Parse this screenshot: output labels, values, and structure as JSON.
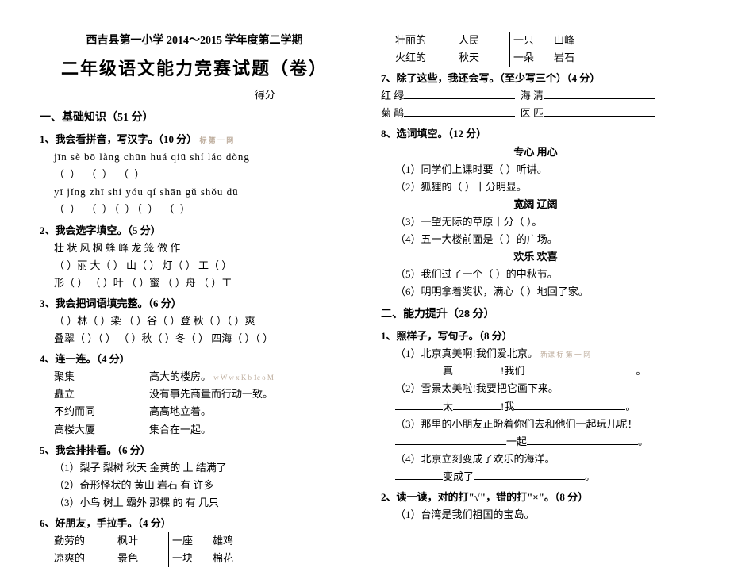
{
  "header": "西吉县第一小学 2014～2015 学年度第二学期",
  "title": "二年级语文能力竞赛试题（卷）",
  "score_label": "得分",
  "sec1": {
    "h": "一、基础知识（51 分）",
    "q1": {
      "h": "1、我会看拼音，写汉字。（10 分）",
      "wm": "标 第 一 网",
      "p1": "jīn sè  bō làng    chūn huá qiū shí        láo dòng",
      "b1": "（     ）   （          ）   （     ）",
      "p2": " yī jǐng    zhī shí    yóu qí   shān gǔ      shǒu dū",
      "b2": "（     ） （     ）（     ）（     ）   （     ）"
    },
    "q2": {
      "h": "2、我会选字填空。（5 分）",
      "l1": "壮 状    风 枫    蜂 峰    龙 笼      做 作",
      "l2": "（  ）丽  大（  ）  山（  ）  灯（  ）  工（  ）",
      "l3": "形（  ）  （  ）叶  （  ）蜜  （  ）舟  （  ）工"
    },
    "q3": {
      "h": "3、我会把词语填完整。（6 分）",
      "l1": "（  ）林（  ）染   （  ）谷（  ）登   秋（    ）（  ）爽",
      "l2": "叠翠（  ）（  ）   （  ）秋（  ）冬（  ）   四海（  ）（  ）"
    },
    "q4": {
      "h": "4、连一连。（4 分）",
      "a1": "聚集",
      "b1": "高大的楼房。",
      "wm": "w    W w x K  b 1c  o M",
      "a2": "矗立",
      "b2": "没有事先商量而行动一致。",
      "a3": "不约而同",
      "b3": "高高地立着。",
      "a4": "高楼大厦",
      "b4": "集合在一起。"
    },
    "q5": {
      "h": "5、我会排排看。（6 分）",
      "l1": "（1）梨子   梨树    秋天   金黄的    上   结满了",
      "l2": "（2）奇形怪状的   黄山   岩石   有   许多",
      "l3": "（3）小鸟   树上   霸外   那棵   的   有   几只"
    },
    "q6": {
      "h": "6、好朋友，手拉手。（4 分）",
      "r1c1": "勤劳的",
      "r1c2": "枫叶",
      "r1c3": "一座",
      "r1c4": "雄鸡",
      "r2c1": "凉爽的",
      "r2c2": "景色",
      "r2c3": "一块",
      "r2c4": "棉花"
    }
  },
  "sec1r": {
    "r1c1": "壮丽的",
    "r1c2": "人民",
    "r1c3": "一只",
    "r1c4": "山峰",
    "r2c1": "火红的",
    "r2c2": "秋天",
    "r2c3": "一朵",
    "r2c4": "岩石",
    "q7": {
      "h": "7、除了这些，我还会写。（至少写三个）（4 分）",
      "l1a": "红 绿",
      "l1b": "海 清",
      "l2a": "菊 鹃",
      "l2b": "医 匹"
    },
    "q8": {
      "h": "8、选词填空。（12 分）",
      "w1": "专心      用心",
      "l1": "（1）同学们上课时要（        ）听讲。",
      "l2": "（2）狐狸的（        ）十分明显。",
      "w2": "宽阔      辽阔",
      "l3": "（3）一望无际的草原十分（        ）。",
      "l4": "（4）五一大楼前面是（        ）的广场。",
      "w3": "欢乐      欢喜",
      "l5": "（5）我们过了一个（        ）的中秋节。",
      "l6": "（6）明明拿着奖状，满心（        ）地回了家。"
    }
  },
  "sec2": {
    "h": "二、能力提升（28 分）",
    "q1": {
      "h": "1、照样子，写句子。（8 分）",
      "l1": "（1）北京真美啊!我们爱北京。",
      "wm": "新课   标   第   一  网",
      "l1b": "真",
      "l1c": "!我们",
      "l2": "（2）雪景太美啦!我要把它画下来。",
      "l2b": "太",
      "l2c": "!我",
      "l3": "（3）那里的小朋友正盼着你们去和他们一起玩儿呢！",
      "l3b": "一起",
      "l4": "（4）北京立刻变成了欢乐的海洋。",
      "l4b": "变成了"
    },
    "q2": {
      "h": "2、读一读，对的打\"√\"，错的打\"×\"。（8 分）",
      "l1": "（1）台湾是我们祖国的宝岛。"
    }
  }
}
